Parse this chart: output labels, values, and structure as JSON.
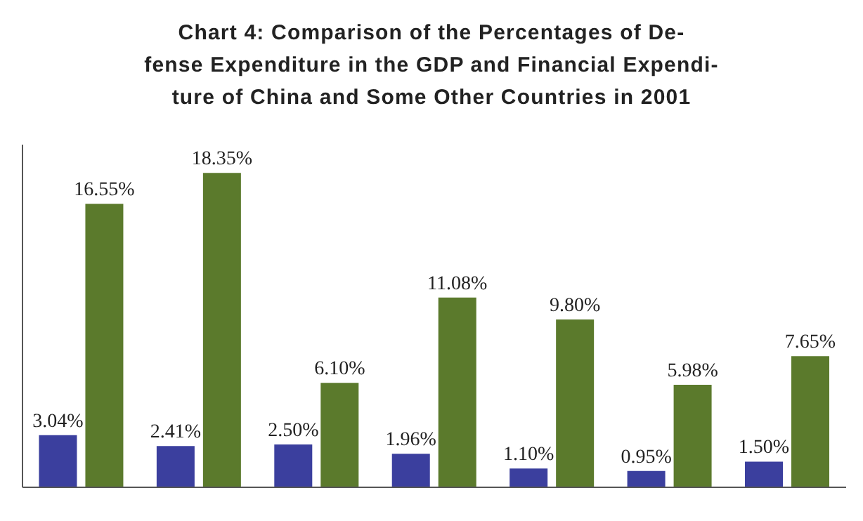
{
  "chart_data": {
    "type": "bar",
    "title": "Chart 4: Comparison of the Percentages of De-\nfense Expenditure in the GDP and Financial Expendi-\nture of China and Some Other Countries in 2001",
    "categories": [
      null,
      null,
      null,
      null,
      null,
      null,
      null
    ],
    "series": [
      {
        "color": "#3b3f9e",
        "values": [
          3.04,
          2.41,
          2.5,
          1.96,
          1.1,
          0.95,
          1.5
        ],
        "value_labels": [
          "3.04%",
          "2.41%",
          "2.50%",
          "1.96%",
          "1.10%",
          "0.95%",
          "1.50%"
        ]
      },
      {
        "color": "#5b7a2c",
        "values": [
          16.55,
          18.35,
          6.1,
          11.08,
          9.8,
          5.98,
          7.65
        ],
        "value_labels": [
          "16.55%",
          "18.35%",
          "6.10%",
          "11.08%",
          "9.80%",
          "5.98%",
          "7.65%"
        ]
      }
    ],
    "ylim": [
      0,
      20
    ],
    "tick_labels": false,
    "grid": false,
    "legend": false
  }
}
